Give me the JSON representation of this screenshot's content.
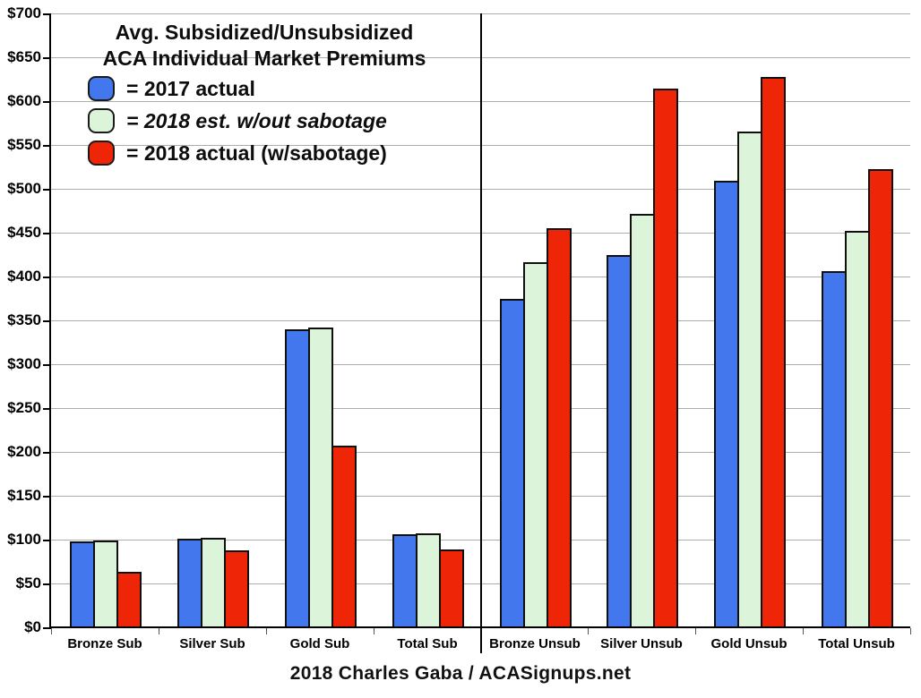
{
  "title": {
    "line1": "Avg. Subsidized/Unsubsidized",
    "line2": "ACA Individual Market Premiums"
  },
  "legend": [
    {
      "label": "= 2017 actual",
      "color": "#4377ee",
      "italic": false
    },
    {
      "label": "= 2018 est. w/out sabotage",
      "color": "#dcf4da",
      "italic": true
    },
    {
      "label": "= 2018 actual (w/sabotage)",
      "color": "#ee2506",
      "italic": false
    }
  ],
  "footer": "2018 Charles Gaba / ACASignups.net",
  "chart_data": {
    "type": "bar",
    "title": "Avg. Subsidized/Unsubsidized ACA Individual Market Premiums",
    "categories": [
      "Bronze Sub",
      "Silver Sub",
      "Gold Sub",
      "Total Sub",
      "Bronze Unsub",
      "Silver Unsub",
      "Gold Unsub",
      "Total Unsub"
    ],
    "series": [
      {
        "name": "2017 actual",
        "color": "#4377ee",
        "values": [
          98,
          101,
          340,
          106,
          374,
          424,
          509,
          406
        ]
      },
      {
        "name": "2018 est. w/out sabotage",
        "color": "#dcf4da",
        "values": [
          99,
          102,
          342,
          107,
          416,
          471,
          565,
          452
        ]
      },
      {
        "name": "2018 actual (w/sabotage)",
        "color": "#ee2506",
        "values": [
          63,
          88,
          207,
          89,
          455,
          614,
          628,
          522
        ]
      }
    ],
    "y_axis": {
      "min": 0,
      "max": 700,
      "step": 50,
      "format": "currency"
    },
    "y_tick_labels": [
      "$0",
      "$50",
      "$100",
      "$150",
      "$200",
      "$250",
      "$300",
      "$350",
      "$400",
      "$450",
      "$500",
      "$550",
      "$600",
      "$650",
      "$700"
    ],
    "grid": true,
    "legend_position": "top-left-inside",
    "divider_after_category_index": 3
  }
}
